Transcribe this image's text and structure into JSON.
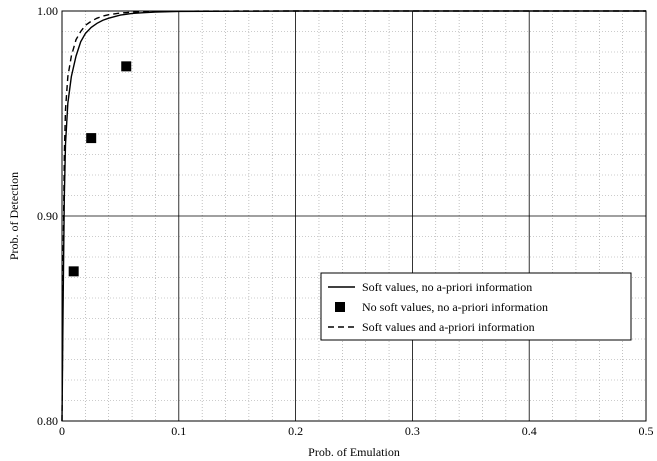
{
  "chart_data": {
    "type": "line",
    "xlabel": "Prob. of Emulation",
    "ylabel": "Prob. of Detection",
    "xlim": [
      0,
      0.5
    ],
    "ylim": [
      0.8,
      1.0
    ],
    "x_ticks": [
      0,
      0.1,
      0.2,
      0.3,
      0.4,
      0.5
    ],
    "x_tick_labels": [
      "0",
      "0.1",
      "0.2",
      "0.3",
      "0.4",
      "0.5"
    ],
    "y_ticks": [
      0.8,
      0.9,
      1.0
    ],
    "y_tick_labels": [
      "0.80",
      "0.90",
      "1.00"
    ],
    "grid": {
      "major": true,
      "minor": true
    },
    "legend_position": "center-right",
    "series": [
      {
        "name": "Soft values, no a-priori information",
        "style": "solid",
        "x": [
          0,
          0.001,
          0.002,
          0.003,
          0.005,
          0.008,
          0.012,
          0.016,
          0.02,
          0.025,
          0.03,
          0.035,
          0.04,
          0.05,
          0.06,
          0.07,
          0.08,
          0.1,
          0.15,
          0.2,
          0.3,
          0.4,
          0.5
        ],
        "y": [
          0.8,
          0.86,
          0.91,
          0.935,
          0.955,
          0.968,
          0.978,
          0.985,
          0.989,
          0.992,
          0.994,
          0.9955,
          0.9965,
          0.998,
          0.9988,
          0.9992,
          0.9995,
          0.9998,
          0.9999,
          1.0,
          1.0,
          1.0,
          1.0
        ]
      },
      {
        "name": "No soft values, no a-priori information",
        "style": "markers",
        "x": [
          0.01,
          0.025,
          0.055
        ],
        "y": [
          0.873,
          0.938,
          0.973
        ]
      },
      {
        "name": "Soft values and a-priori information",
        "style": "dashed",
        "x": [
          0,
          0.001,
          0.002,
          0.003,
          0.005,
          0.008,
          0.012,
          0.016,
          0.02,
          0.025,
          0.03,
          0.035,
          0.04,
          0.05,
          0.06,
          0.07,
          0.08,
          0.1,
          0.15,
          0.2,
          0.3,
          0.4,
          0.5
        ],
        "y": [
          0.8,
          0.88,
          0.93,
          0.952,
          0.968,
          0.978,
          0.986,
          0.99,
          0.993,
          0.995,
          0.9965,
          0.9975,
          0.9982,
          0.999,
          0.9994,
          0.9996,
          0.9998,
          0.9999,
          1.0,
          1.0,
          1.0,
          1.0,
          1.0
        ]
      }
    ]
  }
}
